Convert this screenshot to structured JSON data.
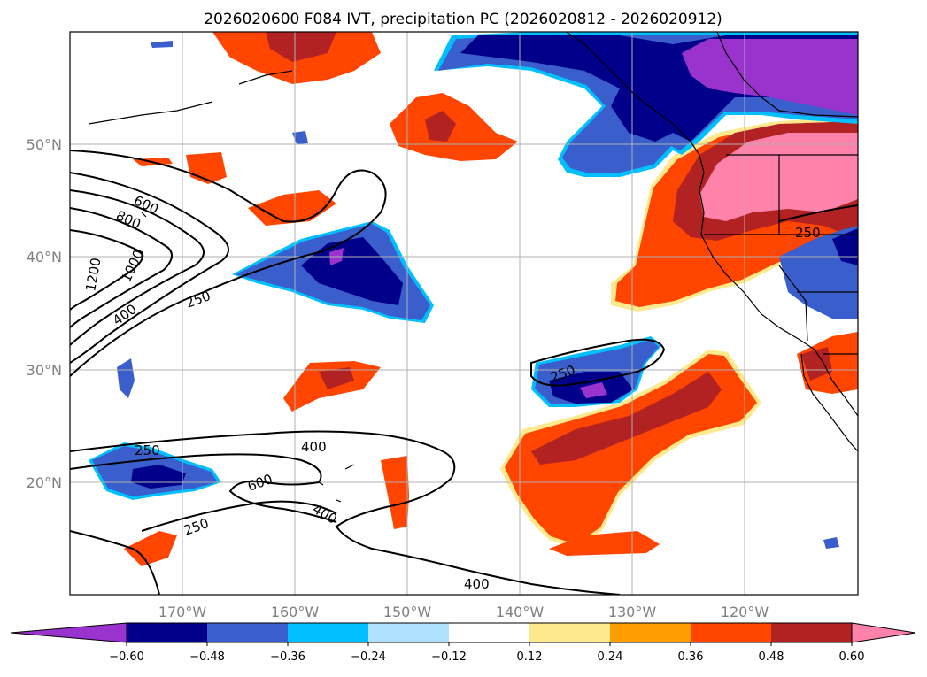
{
  "title": "2026020600 F084 IVT, precipitation PC (2026020812 - 2026020912)",
  "map": {
    "lat_labels": [
      "50°N",
      "40°N",
      "30°N",
      "20°N"
    ],
    "lon_labels": [
      "170°W",
      "160°W",
      "150°W",
      "140°W",
      "130°W",
      "120°W"
    ],
    "gridlines": true,
    "land_color": "#ffffff",
    "coastline_color": "#000000"
  },
  "contours": {
    "field": "IVT",
    "line_color": "#000000",
    "labels": [
      "600",
      "800",
      "1200",
      "1000",
      "400",
      "250",
      "250",
      "250",
      "400",
      "600",
      "400",
      "250",
      "400",
      "250"
    ]
  },
  "colorbar": {
    "ticks": [
      "−0.60",
      "−0.48",
      "−0.36",
      "−0.24",
      "−0.12",
      "0.12",
      "0.24",
      "0.36",
      "0.48",
      "0.60"
    ],
    "colors": [
      "#9a32cd",
      "#00008b",
      "#3a5fcd",
      "#00bfff",
      "#b0e2ff",
      "#ffffff",
      "#fee98d",
      "#ff9e00",
      "#ff4500",
      "#b22222",
      "#ff82ab"
    ],
    "extend": "both"
  },
  "fill_colors": {
    "c_n60": "#9a32cd",
    "c_n48": "#00008b",
    "c_n36": "#3a5fcd",
    "c_n24": "#00bfff",
    "c_n12": "#b0e2ff",
    "c_p12": "#fee98d",
    "c_p24": "#ff9e00",
    "c_p36": "#ff4500",
    "c_p48": "#b22222",
    "c_p60": "#ff82ab"
  }
}
